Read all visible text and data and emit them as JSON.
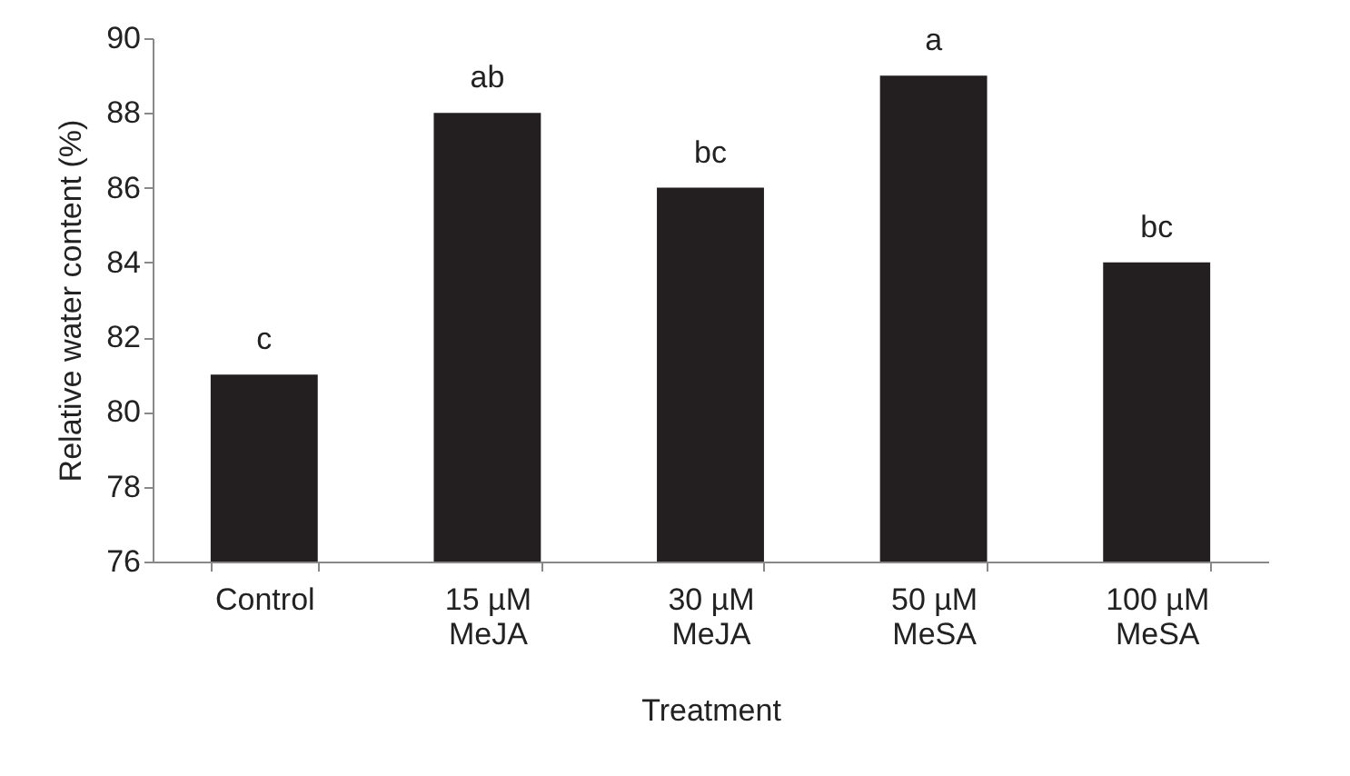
{
  "chart_data": {
    "type": "bar",
    "xlabel": "Treatment",
    "ylabel": "Relative water content (%)",
    "categories": [
      "Control",
      "15 µM MeJA",
      "30 µM MeJA",
      "50 µM MeSA",
      "100 µM MeSA"
    ],
    "values": [
      81,
      88,
      86,
      89,
      84
    ],
    "color": "#231f20",
    "ylim": [
      76,
      90
    ],
    "yticks": [
      76,
      78,
      80,
      82,
      84,
      86,
      88,
      90
    ],
    "grid": false,
    "annotations": [
      {
        "text": "c",
        "x": "Control",
        "y": 81
      },
      {
        "text": "ab",
        "x": "15 µM MeJA",
        "y": 88
      },
      {
        "text": "bc",
        "x": "30 µM MeJA",
        "y": 86
      },
      {
        "text": "a",
        "x": "50 µM MeSA",
        "y": 89
      },
      {
        "text": "bc",
        "x": "100 µM MeSA",
        "y": 84
      }
    ]
  }
}
